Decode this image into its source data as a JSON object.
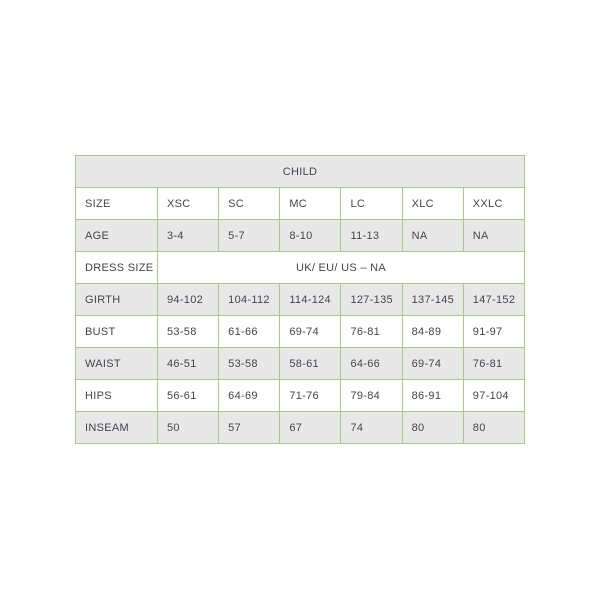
{
  "colors": {
    "border": "#a8ca85",
    "alt_row": "#e8e8e8",
    "text": "#41454e"
  },
  "table": {
    "header": "CHILD",
    "size": {
      "label": "SIZE",
      "values": [
        "XSC",
        "SC",
        "MC",
        "LC",
        "XLC",
        "XXLC"
      ]
    },
    "age": {
      "label": "AGE",
      "values": [
        "3-4",
        "5-7",
        "8-10",
        "11-13",
        "NA",
        "NA"
      ]
    },
    "dress": {
      "label": "DRESS SIZE",
      "value": "UK/ EU/ US – NA"
    },
    "girth": {
      "label": "GIRTH",
      "values": [
        "94-102",
        "104-112",
        "114-124",
        "127-135",
        "137-145",
        "147-152"
      ]
    },
    "bust": {
      "label": "BUST",
      "values": [
        "53-58",
        "61-66",
        "69-74",
        "76-81",
        "84-89",
        "91-97"
      ]
    },
    "waist": {
      "label": "WAIST",
      "values": [
        "46-51",
        "53-58",
        "58-61",
        "64-66",
        "69-74",
        "76-81"
      ]
    },
    "hips": {
      "label": "HIPS",
      "values": [
        "56-61",
        "64-69",
        "71-76",
        "79-84",
        "86-91",
        "97-104"
      ]
    },
    "inseam": {
      "label": "INSEAM",
      "values": [
        "50",
        "57",
        "67",
        "74",
        "80",
        "80"
      ]
    }
  }
}
